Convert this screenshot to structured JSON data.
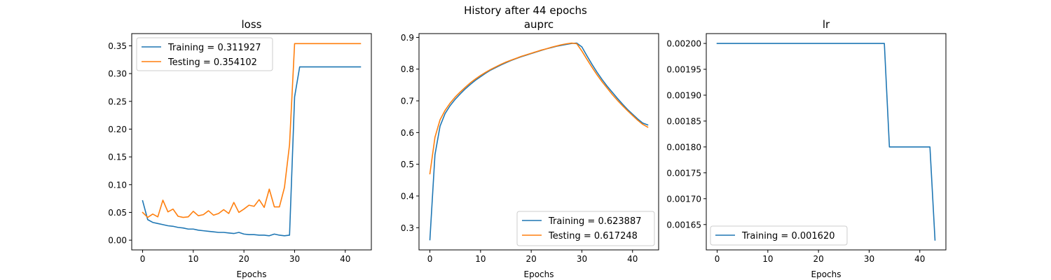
{
  "figure": {
    "suptitle": "History after 44 epochs"
  },
  "chart_data": [
    {
      "type": "line",
      "title": "loss",
      "xlabel": "Epochs",
      "ylabel": "",
      "xlim": [
        -2.15,
        45.15
      ],
      "ylim": [
        -0.0175,
        0.372
      ],
      "xticks": [
        0,
        10,
        20,
        30,
        40
      ],
      "yticks": [
        0.0,
        0.05,
        0.1,
        0.15,
        0.2,
        0.25,
        0.3,
        0.35
      ],
      "ytick_decimals": 2,
      "grid": false,
      "legend_position": "upper left",
      "series": [
        {
          "name": "Training = 0.311927",
          "color": "#1f77b4",
          "x": [
            0,
            1,
            2,
            3,
            4,
            5,
            6,
            7,
            8,
            9,
            10,
            11,
            12,
            13,
            14,
            15,
            16,
            17,
            18,
            19,
            20,
            21,
            22,
            23,
            24,
            25,
            26,
            27,
            28,
            29,
            30,
            31,
            32,
            33,
            34,
            35,
            36,
            37,
            38,
            39,
            40,
            41,
            42,
            43
          ],
          "y": [
            0.071,
            0.037,
            0.032,
            0.03,
            0.028,
            0.026,
            0.025,
            0.023,
            0.022,
            0.02,
            0.02,
            0.018,
            0.017,
            0.016,
            0.015,
            0.014,
            0.014,
            0.013,
            0.012,
            0.014,
            0.011,
            0.01,
            0.01,
            0.009,
            0.009,
            0.008,
            0.011,
            0.009,
            0.008,
            0.009,
            0.258,
            0.312,
            0.312,
            0.312,
            0.312,
            0.312,
            0.312,
            0.312,
            0.312,
            0.312,
            0.312,
            0.312,
            0.312,
            0.312
          ]
        },
        {
          "name": "Testing = 0.354102",
          "color": "#ff7f0e",
          "x": [
            0,
            1,
            2,
            3,
            4,
            5,
            6,
            7,
            8,
            9,
            10,
            11,
            12,
            13,
            14,
            15,
            16,
            17,
            18,
            19,
            20,
            21,
            22,
            23,
            24,
            25,
            26,
            27,
            28,
            29,
            30,
            31,
            32,
            33,
            34,
            35,
            36,
            37,
            38,
            39,
            40,
            41,
            42,
            43
          ],
          "y": [
            0.05,
            0.041,
            0.047,
            0.042,
            0.072,
            0.051,
            0.056,
            0.043,
            0.041,
            0.042,
            0.052,
            0.044,
            0.046,
            0.053,
            0.045,
            0.048,
            0.055,
            0.048,
            0.068,
            0.05,
            0.056,
            0.063,
            0.061,
            0.073,
            0.059,
            0.092,
            0.06,
            0.06,
            0.095,
            0.172,
            0.354,
            0.354,
            0.354,
            0.354,
            0.354,
            0.354,
            0.354,
            0.354,
            0.354,
            0.354,
            0.354,
            0.354,
            0.354,
            0.354
          ]
        }
      ]
    },
    {
      "type": "line",
      "title": "auprc",
      "xlabel": "Epochs",
      "ylabel": "",
      "xlim": [
        -2.15,
        45.15
      ],
      "ylim": [
        0.23,
        0.912
      ],
      "xticks": [
        0,
        10,
        20,
        30,
        40
      ],
      "yticks": [
        0.3,
        0.4,
        0.5,
        0.6,
        0.7,
        0.8,
        0.9
      ],
      "ytick_decimals": 1,
      "grid": false,
      "legend_position": "lower right",
      "series": [
        {
          "name": "Training = 0.623887",
          "color": "#1f77b4",
          "x": [
            0,
            1,
            2,
            3,
            4,
            5,
            6,
            7,
            8,
            9,
            10,
            11,
            12,
            13,
            14,
            15,
            16,
            17,
            18,
            19,
            20,
            21,
            22,
            23,
            24,
            25,
            26,
            27,
            28,
            29,
            30,
            31,
            32,
            33,
            34,
            35,
            36,
            37,
            38,
            39,
            40,
            41,
            42,
            43
          ],
          "y": [
            0.262,
            0.53,
            0.62,
            0.66,
            0.685,
            0.705,
            0.722,
            0.738,
            0.752,
            0.765,
            0.776,
            0.787,
            0.797,
            0.805,
            0.813,
            0.82,
            0.827,
            0.833,
            0.839,
            0.844,
            0.849,
            0.854,
            0.859,
            0.864,
            0.868,
            0.872,
            0.875,
            0.878,
            0.881,
            0.882,
            0.87,
            0.842,
            0.815,
            0.79,
            0.767,
            0.746,
            0.727,
            0.708,
            0.69,
            0.673,
            0.658,
            0.643,
            0.63,
            0.624
          ]
        },
        {
          "name": "Testing = 0.617248",
          "color": "#ff7f0e",
          "x": [
            0,
            1,
            2,
            3,
            4,
            5,
            6,
            7,
            8,
            9,
            10,
            11,
            12,
            13,
            14,
            15,
            16,
            17,
            18,
            19,
            20,
            21,
            22,
            23,
            24,
            25,
            26,
            27,
            28,
            29,
            30,
            31,
            32,
            33,
            34,
            35,
            36,
            37,
            38,
            39,
            40,
            41,
            42,
            43
          ],
          "y": [
            0.47,
            0.585,
            0.64,
            0.67,
            0.693,
            0.712,
            0.728,
            0.743,
            0.757,
            0.769,
            0.78,
            0.79,
            0.799,
            0.807,
            0.815,
            0.822,
            0.828,
            0.834,
            0.84,
            0.845,
            0.85,
            0.855,
            0.86,
            0.864,
            0.869,
            0.873,
            0.877,
            0.88,
            0.882,
            0.88,
            0.857,
            0.831,
            0.806,
            0.782,
            0.76,
            0.74,
            0.72,
            0.702,
            0.685,
            0.669,
            0.654,
            0.639,
            0.626,
            0.617
          ]
        }
      ]
    },
    {
      "type": "line",
      "title": "lr",
      "xlabel": "Epochs",
      "ylabel": "",
      "xlim": [
        -2.15,
        45.15
      ],
      "ylim": [
        0.001601,
        0.002019
      ],
      "xticks": [
        0,
        10,
        20,
        30,
        40
      ],
      "yticks": [
        0.00165,
        0.0017,
        0.00175,
        0.0018,
        0.00185,
        0.0019,
        0.00195,
        0.002
      ],
      "ytick_decimals": 5,
      "grid": false,
      "legend_position": "lower left",
      "series": [
        {
          "name": "Training = 0.001620",
          "color": "#1f77b4",
          "x": [
            0,
            1,
            2,
            3,
            4,
            5,
            6,
            7,
            8,
            9,
            10,
            11,
            12,
            13,
            14,
            15,
            16,
            17,
            18,
            19,
            20,
            21,
            22,
            23,
            24,
            25,
            26,
            27,
            28,
            29,
            30,
            31,
            32,
            33,
            34,
            35,
            36,
            37,
            38,
            39,
            40,
            41,
            42,
            43
          ],
          "y": [
            0.002,
            0.002,
            0.002,
            0.002,
            0.002,
            0.002,
            0.002,
            0.002,
            0.002,
            0.002,
            0.002,
            0.002,
            0.002,
            0.002,
            0.002,
            0.002,
            0.002,
            0.002,
            0.002,
            0.002,
            0.002,
            0.002,
            0.002,
            0.002,
            0.002,
            0.002,
            0.002,
            0.002,
            0.002,
            0.002,
            0.002,
            0.002,
            0.002,
            0.002,
            0.0018,
            0.0018,
            0.0018,
            0.0018,
            0.0018,
            0.0018,
            0.0018,
            0.0018,
            0.0018,
            0.00162
          ]
        }
      ]
    }
  ]
}
